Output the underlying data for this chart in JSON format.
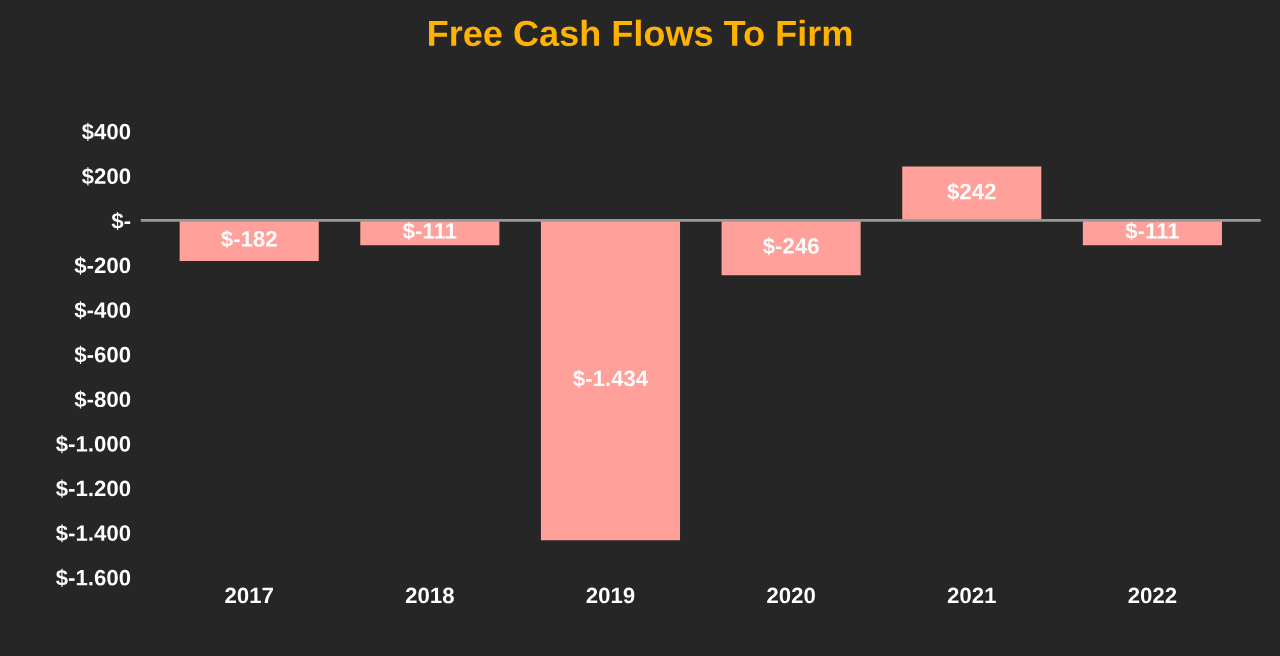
{
  "chart_data": {
    "type": "bar",
    "title": "Free Cash Flows To Firm",
    "categories": [
      "2017",
      "2018",
      "2019",
      "2020",
      "2021",
      "2022"
    ],
    "values": [
      -182,
      -111,
      -1434,
      -246,
      242,
      -111
    ],
    "value_labels": [
      "$-182",
      "$-111",
      "$-1.434",
      "$-246",
      "$242",
      "$-111"
    ],
    "color": "#ffa19a",
    "ylim": [
      -1600,
      400
    ],
    "yticks": [
      {
        "value": 400,
        "label": "$400"
      },
      {
        "value": 200,
        "label": "$200"
      },
      {
        "value": 0,
        "label": "$-"
      },
      {
        "value": -200,
        "label": "$-200"
      },
      {
        "value": -400,
        "label": "$-400"
      },
      {
        "value": -600,
        "label": "$-600"
      },
      {
        "value": -800,
        "label": "$-800"
      },
      {
        "value": -1000,
        "label": "$-1.000"
      },
      {
        "value": -1200,
        "label": "$-1.200"
      },
      {
        "value": -1400,
        "label": "$-1.400"
      },
      {
        "value": -1600,
        "label": "$-1.600"
      }
    ]
  }
}
